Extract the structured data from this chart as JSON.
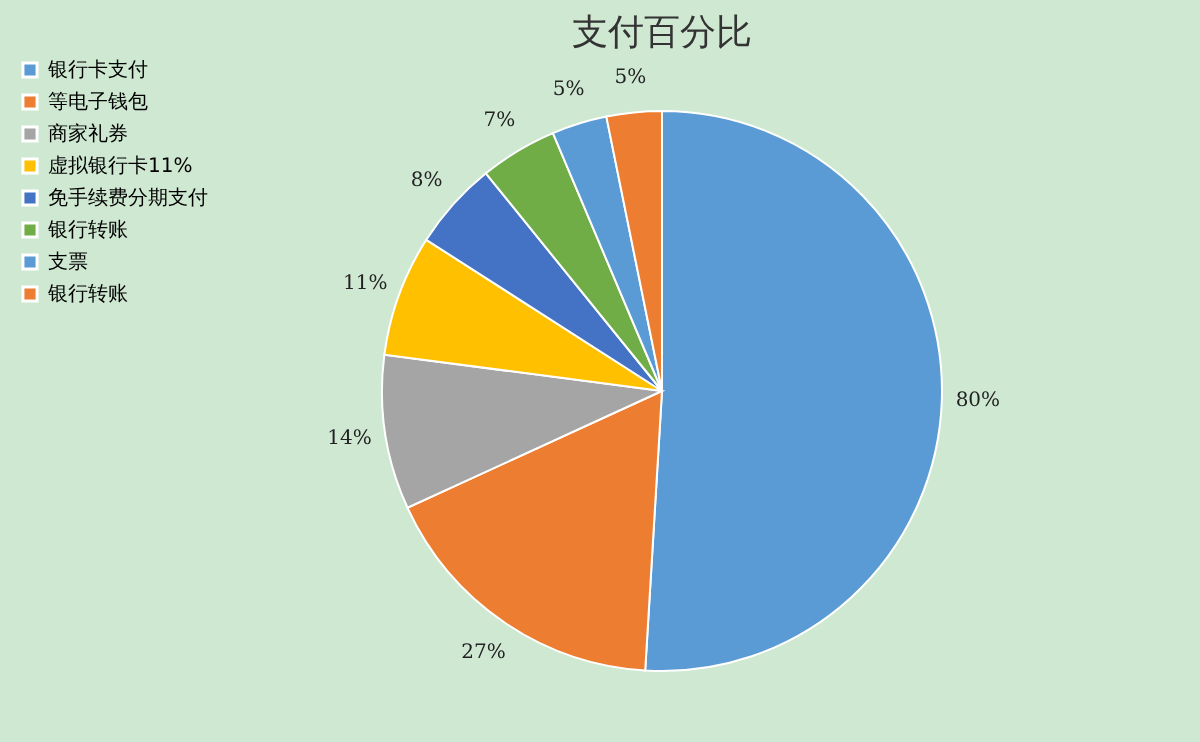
{
  "chart_data": {
    "type": "pie",
    "title": "支付百分比",
    "categories": [
      "银行卡支付",
      "等电子钱包",
      "商家礼券",
      "虚拟银行卡11%",
      "免手续费分期支付",
      "银行转账",
      "支票",
      "银行转账"
    ],
    "values": [
      80,
      27,
      14,
      11,
      8,
      7,
      5,
      5
    ],
    "value_labels": [
      "80%",
      "27%",
      "14%",
      "11%",
      "8%",
      "7%",
      "5%",
      "5%"
    ],
    "colors": [
      "#5b9bd5",
      "#ed7d31",
      "#a5a5a5",
      "#ffc000",
      "#4472c4",
      "#70ad47",
      "#5b9bd5",
      "#ed7d31"
    ],
    "legend": "left"
  }
}
